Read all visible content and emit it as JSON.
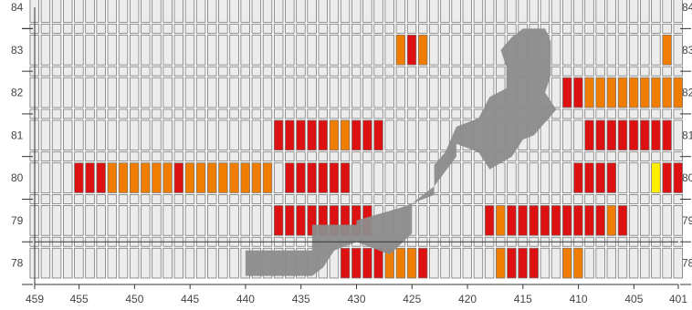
{
  "chart_data": {
    "type": "heatmap",
    "x_axis": {
      "ticks": [
        459,
        455,
        450,
        445,
        440,
        435,
        430,
        425,
        420,
        415,
        410,
        405,
        401
      ],
      "range": [
        459,
        401
      ],
      "direction": "decreasing-left-to-right"
    },
    "y_axis": {
      "ticks": [
        84,
        83,
        82,
        81,
        80,
        79,
        78
      ],
      "range": [
        77.5,
        84
      ]
    },
    "colors": {
      "empty": "#ececec",
      "red": "#dd1111",
      "orange": "#f07d00",
      "yellow": "#ffee00",
      "gray": "#8c8c8c",
      "cell_border": "#777777"
    },
    "cells": {
      "83": {
        "orange": [
          426,
          424,
          402
        ],
        "red": [
          425
        ]
      },
      "82": {
        "red": [
          411,
          410
        ],
        "orange": [
          409,
          408,
          407,
          406,
          405,
          404,
          403,
          402,
          401
        ]
      },
      "81": {
        "red": [
          437,
          436,
          435,
          434,
          433,
          430,
          429,
          428,
          409,
          408,
          407,
          406,
          405,
          404,
          403,
          402
        ],
        "orange": [
          432,
          431
        ],
        "empty": [
          401
        ]
      },
      "80": {
        "red": [
          455,
          454,
          453,
          446,
          436,
          435,
          434,
          433,
          432,
          431,
          410,
          409,
          408,
          407,
          402,
          401
        ],
        "orange": [
          452,
          451,
          450,
          449,
          448,
          447,
          445,
          444,
          443,
          442,
          441,
          440,
          439,
          438
        ],
        "yellow": [
          403
        ]
      },
      "79": {
        "red": [
          437,
          436,
          435,
          434,
          433,
          432,
          431,
          430,
          429,
          418,
          416,
          415,
          414,
          413,
          412,
          411,
          410,
          409,
          408,
          406
        ],
        "orange": [
          417,
          407
        ]
      },
      "78": {
        "red": [
          431,
          430,
          429,
          428,
          424,
          416,
          415,
          414
        ],
        "orange": [
          427,
          426,
          425,
          417,
          411,
          410
        ]
      }
    },
    "gray_region": "irregular gray stepped band from lower-left (440, 77.7) to upper-right (412, 83.5)"
  }
}
